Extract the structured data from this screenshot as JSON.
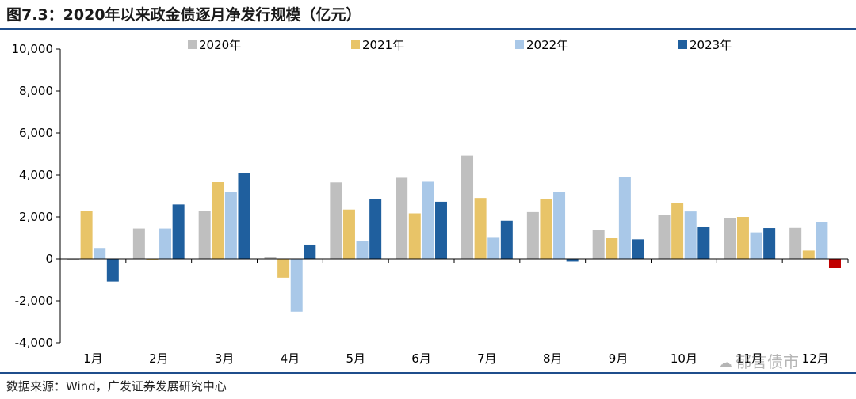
{
  "header": {
    "title": "图7.3：2020年以来政金债逐月净发行规模（亿元）"
  },
  "footer": {
    "source": "数据来源：Wind，广发证券发展研究中心"
  },
  "watermark": {
    "text": "郁言债市",
    "icon": "wechat-icon"
  },
  "chart_data": {
    "type": "bar",
    "title": "",
    "xlabel": "",
    "ylabel": "",
    "categories": [
      "1月",
      "2月",
      "3月",
      "4月",
      "5月",
      "6月",
      "7月",
      "8月",
      "9月",
      "10月",
      "11月",
      "12月"
    ],
    "ylim": [
      -4000,
      10000
    ],
    "yticks": [
      -4000,
      -2000,
      0,
      2000,
      4000,
      6000,
      8000,
      10000
    ],
    "ytick_labels": [
      "-4,000",
      "-2,000",
      "0",
      "2,000",
      "4,000",
      "6,000",
      "8,000",
      "10,000"
    ],
    "grid": false,
    "legend_position": "top",
    "series": [
      {
        "name": "2020年",
        "color": "#bfbfbf",
        "values": [
          -50,
          1450,
          2300,
          80,
          3650,
          3870,
          4920,
          2230,
          1360,
          2100,
          1950,
          1480
        ]
      },
      {
        "name": "2021年",
        "color": "#e8c468",
        "values": [
          2300,
          -60,
          3660,
          -900,
          2350,
          2170,
          2900,
          2850,
          1000,
          2650,
          2000,
          400
        ]
      },
      {
        "name": "2022年",
        "color": "#a9c8e8",
        "values": [
          520,
          1450,
          3170,
          -2520,
          830,
          3680,
          1040,
          3170,
          3920,
          2260,
          1260,
          1750
        ]
      },
      {
        "name": "2023年",
        "color": "#1f5f9e",
        "values": [
          -1080,
          2590,
          4100,
          680,
          2830,
          2720,
          1820,
          -130,
          930,
          1510,
          1470,
          -420
        ]
      }
    ],
    "highlight": {
      "category": "12月",
      "series": "2023年",
      "color": "#c00000"
    }
  }
}
